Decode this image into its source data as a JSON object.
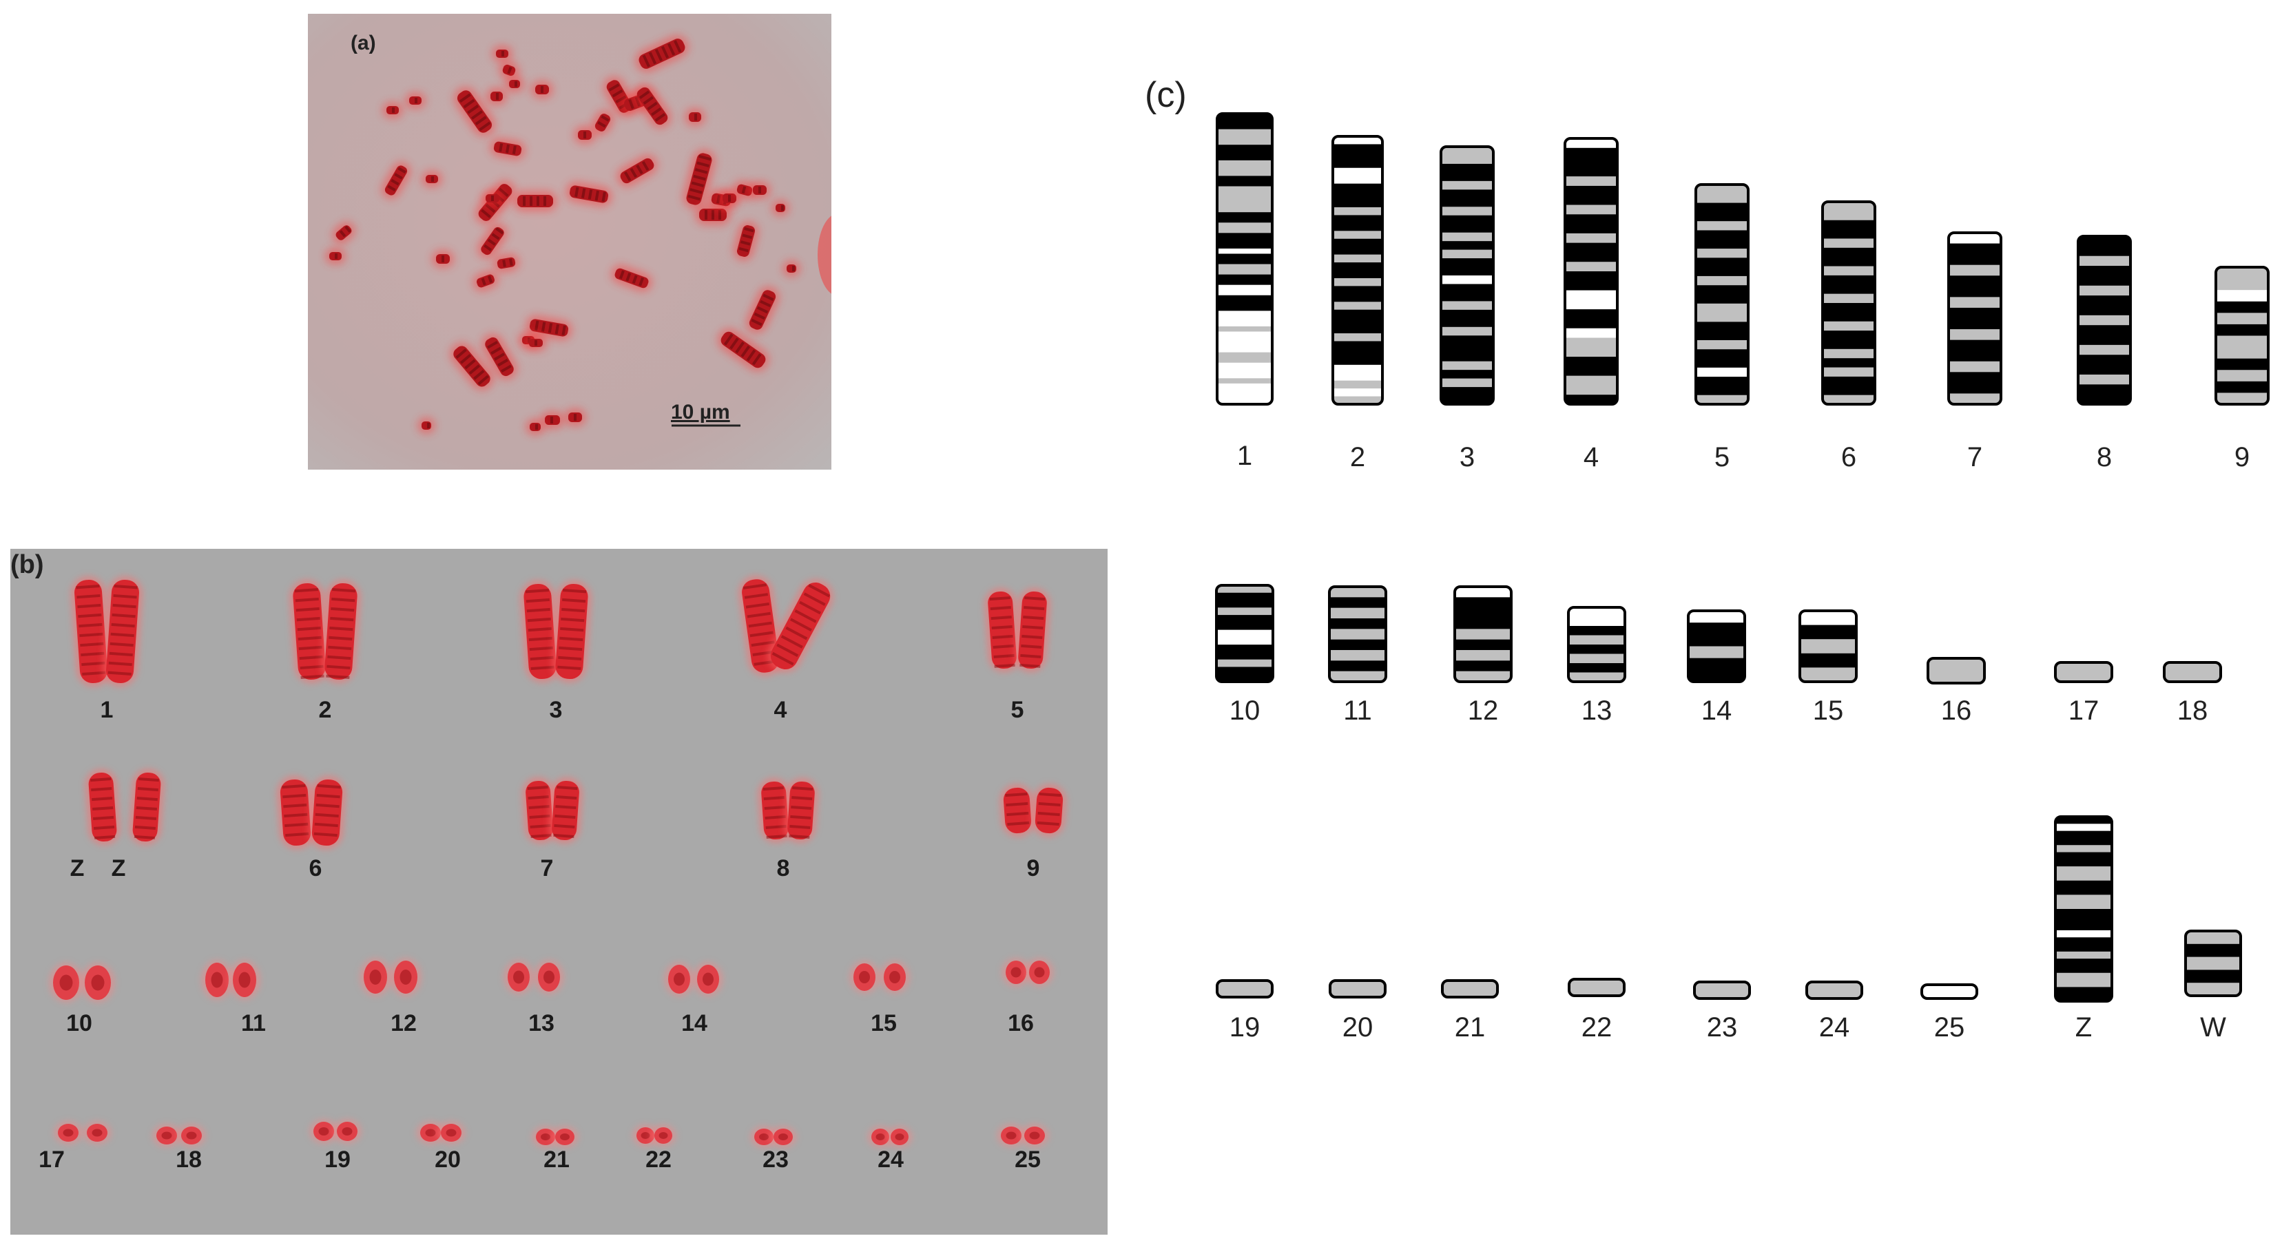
{
  "panel_a": {
    "label": "(a)",
    "scale_bar": "10 µm"
  },
  "panel_b": {
    "label": "(b)",
    "chromosomes": [
      "1",
      "2",
      "3",
      "4",
      "5",
      "Z",
      "Z",
      "6",
      "7",
      "8",
      "9",
      "10",
      "11",
      "12",
      "13",
      "14",
      "15",
      "16",
      "17",
      "18",
      "19",
      "20",
      "21",
      "22",
      "23",
      "24",
      "25"
    ]
  },
  "panel_c": {
    "label": "(c)",
    "ideogram": [
      "1",
      "2",
      "3",
      "4",
      "5",
      "6",
      "7",
      "8",
      "9",
      "10",
      "11",
      "12",
      "13",
      "14",
      "15",
      "16",
      "17",
      "18",
      "19",
      "20",
      "21",
      "22",
      "23",
      "24",
      "25",
      "Z",
      "W"
    ]
  },
  "colors": {
    "chromosome_red": "#d8262e",
    "background_a": "#b4aaaa",
    "background_b": "#a9a9a9",
    "band_black": "#000000",
    "band_grey": "#c0c0c0",
    "band_white": "#ffffff"
  }
}
